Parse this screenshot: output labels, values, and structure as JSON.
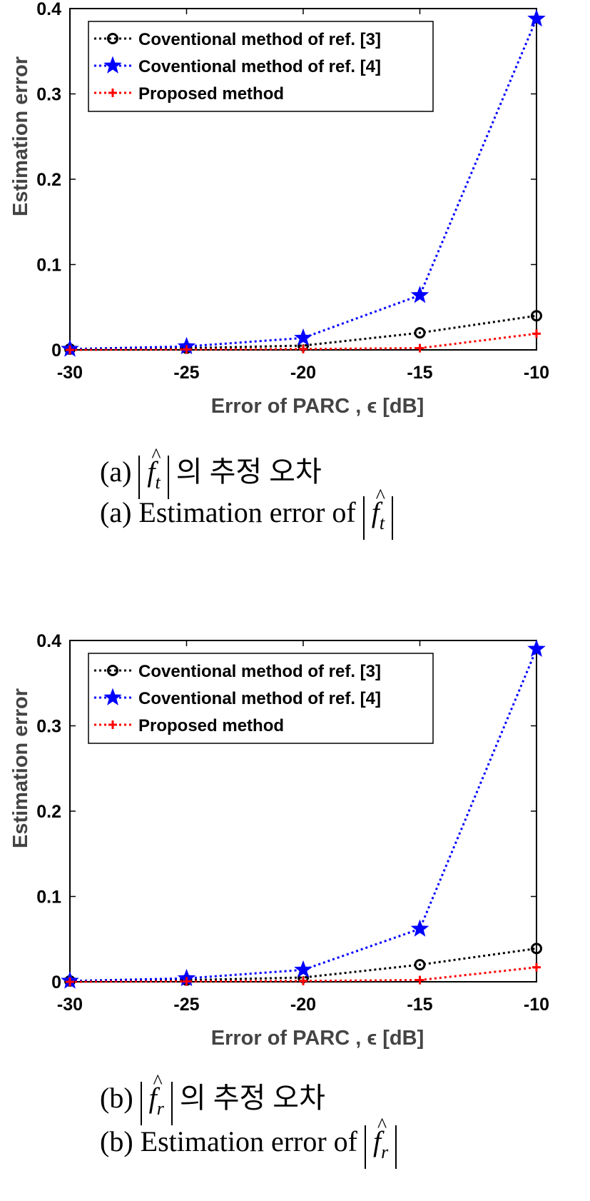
{
  "chart_data": [
    {
      "type": "line",
      "panel": "a",
      "xlabel": "Error of PARC , ϵ  [dB]",
      "ylabel": "Estimation error",
      "x": [
        -30,
        -25,
        -20,
        -15,
        -10
      ],
      "xlim": [
        -30,
        -10
      ],
      "ylim": [
        0,
        0.4
      ],
      "xticks": [
        "-30",
        "-25",
        "-20",
        "-15",
        "-10"
      ],
      "yticks": [
        "0",
        "0.1",
        "0.2",
        "0.3",
        "0.4"
      ],
      "grid": false,
      "legend": "top-left",
      "series": [
        {
          "name": "Coventional method of ref. [3]",
          "values": [
            0.001,
            0.002,
            0.005,
            0.02,
            0.04
          ],
          "color": "#000000",
          "marker": "circle"
        },
        {
          "name": "Coventional method of ref. [4]",
          "values": [
            0.001,
            0.004,
            0.014,
            0.064,
            0.388
          ],
          "color": "#0000ff",
          "marker": "star"
        },
        {
          "name": "Proposed method",
          "values": [
            0.0,
            0.0005,
            0.001,
            0.002,
            0.019
          ],
          "color": "#ff0000",
          "marker": "plus"
        }
      ]
    },
    {
      "type": "line",
      "panel": "b",
      "xlabel": "Error of PARC , ϵ  [dB]",
      "ylabel": "Estimation error",
      "x": [
        -30,
        -25,
        -20,
        -15,
        -10
      ],
      "xlim": [
        -30,
        -10
      ],
      "ylim": [
        0,
        0.4
      ],
      "xticks": [
        "-30",
        "-25",
        "-20",
        "-15",
        "-10"
      ],
      "yticks": [
        "0",
        "0.1",
        "0.2",
        "0.3",
        "0.4"
      ],
      "grid": false,
      "legend": "top-left",
      "series": [
        {
          "name": "Coventional method of ref. [3]",
          "values": [
            0.001,
            0.002,
            0.005,
            0.02,
            0.039
          ],
          "color": "#000000",
          "marker": "circle"
        },
        {
          "name": "Coventional method of ref. [4]",
          "values": [
            0.001,
            0.004,
            0.014,
            0.062,
            0.39
          ],
          "color": "#0000ff",
          "marker": "star"
        },
        {
          "name": "Proposed method",
          "values": [
            0.0,
            0.0005,
            0.001,
            0.002,
            0.017
          ],
          "color": "#ff0000",
          "marker": "plus"
        }
      ]
    }
  ],
  "captions": {
    "a_korean_prefix": "(a)",
    "a_korean_suffix": "의 추정 오차",
    "a_english_prefix": "(a) Estimation error of",
    "a_symbol": "f",
    "a_subscript": "t",
    "b_korean_prefix": "(b)",
    "b_korean_suffix": "의 추정 오차",
    "b_english_prefix": "(b) Estimation error of",
    "b_symbol": "f",
    "b_subscript": "r"
  }
}
